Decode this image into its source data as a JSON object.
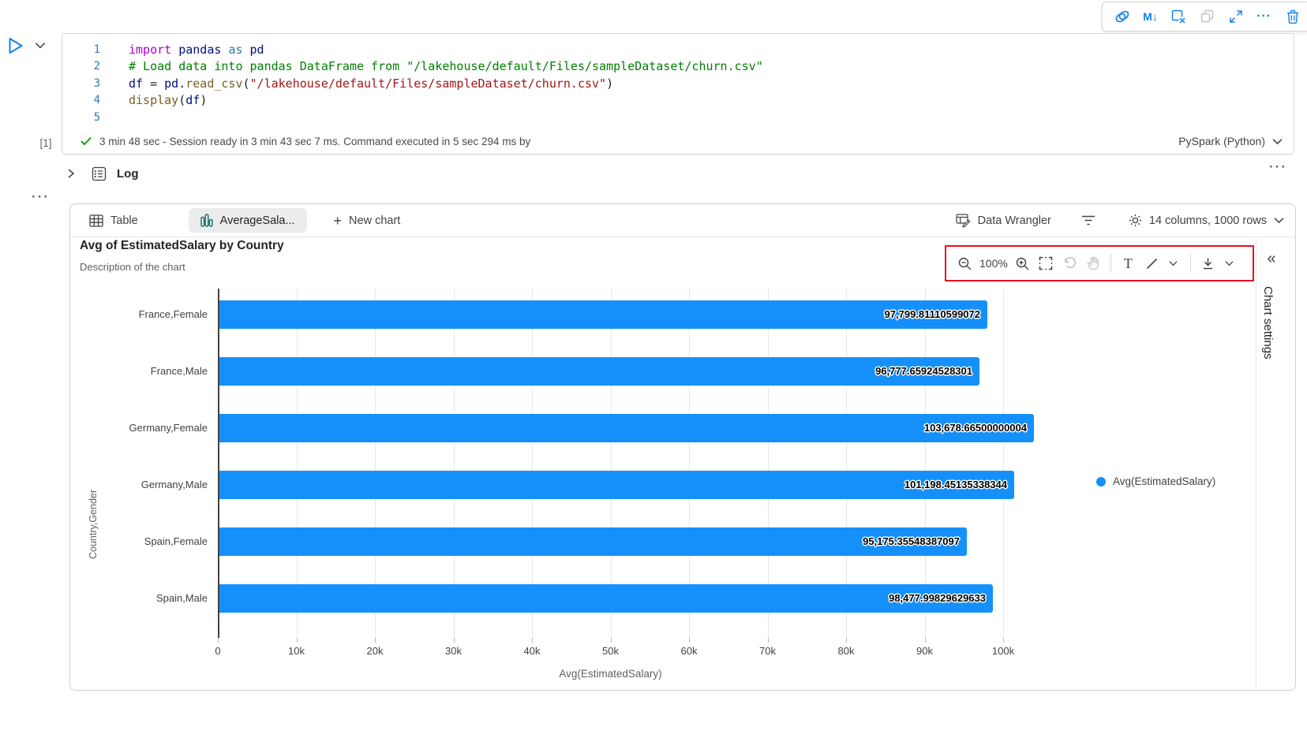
{
  "glyphs": {
    "ellipsis": "···",
    "collapse": "«",
    "plus": "+",
    "text_tool": "T",
    "markdown": "M↓"
  },
  "colors": {
    "accent_blue": "#1580ef",
    "bar_blue": "#1590fa",
    "teal_icon": "#0e6e62",
    "annotation_red": "#e81123",
    "success_green": "#13a10e",
    "selected_tab_bg": "#ececec"
  },
  "icons": {
    "cell_toolbar": [
      "copilot-icon",
      "markdown-convert-icon",
      "clear-output-icon",
      "copy-cell-icon",
      "expand-cell-icon",
      "more-icon",
      "delete-icon"
    ],
    "run_area": [
      "run-cell-icon",
      "run-options-chevron-icon"
    ],
    "log_row": [
      "chevron-right-icon",
      "log-icon",
      "more-icon"
    ],
    "tab_bar": [
      "table-icon",
      "bar-chart-icon",
      "plus-icon",
      "data-wrangler-icon",
      "filter-icon",
      "gear-icon",
      "chevron-down-icon"
    ],
    "chart_toolbar": [
      "zoom-out-icon",
      "zoom-in-icon",
      "select-region-icon",
      "undo-icon",
      "pan-icon",
      "text-tool-icon",
      "line-tool-icon",
      "download-icon",
      "chevron-down-icon"
    ],
    "chart_panel": [
      "collapse-double-chevron-icon"
    ],
    "status_row": [
      "success-check-icon",
      "chevron-down-icon"
    ]
  },
  "code": {
    "lines": [
      {
        "n": "1",
        "tokens": [
          {
            "t": "import",
            "c": "kw"
          },
          {
            "t": " ",
            "c": "pl"
          },
          {
            "t": "pandas",
            "c": "mod"
          },
          {
            "t": " ",
            "c": "pl"
          },
          {
            "t": "as",
            "c": "kw2"
          },
          {
            "t": " ",
            "c": "pl"
          },
          {
            "t": "pd",
            "c": "mod"
          }
        ]
      },
      {
        "n": "2",
        "tokens": [
          {
            "t": "# Load data into pandas DataFrame from \"/lakehouse/default/Files/sampleDataset/churn.csv\"",
            "c": "cm"
          }
        ]
      },
      {
        "n": "3",
        "tokens": [
          {
            "t": "df",
            "c": "mod"
          },
          {
            "t": " = ",
            "c": "pl"
          },
          {
            "t": "pd",
            "c": "mod"
          },
          {
            "t": ".",
            "c": "pl"
          },
          {
            "t": "read_csv",
            "c": "fn"
          },
          {
            "t": "(",
            "c": "pl"
          },
          {
            "t": "\"/lakehouse/default/Files/sampleDataset/churn.csv\"",
            "c": "st"
          },
          {
            "t": ")",
            "c": "pl"
          }
        ]
      },
      {
        "n": "4",
        "tokens": [
          {
            "t": "display",
            "c": "fn"
          },
          {
            "t": "(",
            "c": "pl"
          },
          {
            "t": "df",
            "c": "mod"
          },
          {
            "t": ")",
            "c": "pl"
          }
        ]
      },
      {
        "n": "5",
        "tokens": []
      }
    ]
  },
  "status": {
    "execution_count": "[1]",
    "message": "3 min 48 sec - Session ready in 3 min 43 sec 7 ms. Command executed in 5 sec 294 ms by",
    "kernel": "PySpark (Python)"
  },
  "log": {
    "label": "Log"
  },
  "output_tabs": {
    "table": "Table",
    "chart": "AverageSala...",
    "new_chart": "New chart",
    "data_wrangler": "Data Wrangler",
    "table_info": "14 columns, 1000 rows"
  },
  "chart_toolbar": {
    "zoom_level": "100%"
  },
  "chart_settings": {
    "label": "Chart settings"
  },
  "chart_data": {
    "type": "bar",
    "orientation": "horizontal",
    "title": "Avg of EstimatedSalary by Country",
    "subtitle": "Description of the chart",
    "categories": [
      "France,Female",
      "France,Male",
      "Germany,Female",
      "Germany,Male",
      "Spain,Female",
      "Spain,Male"
    ],
    "values": [
      97799.81110599072,
      96777.65924528301,
      103678.66500000004,
      101198.45135338344,
      95175.35548387097,
      98477.99829629633
    ],
    "value_labels": [
      "97,799.81110599072",
      "96,777.65924528301",
      "103,678.66500000004",
      "101,198.45135338344",
      "95,175.35548387097",
      "98,477.99829629633"
    ],
    "series": [
      {
        "name": "Avg(EstimatedSalary)",
        "color": "#1590fa"
      }
    ],
    "legend": [
      {
        "label": "Avg(EstimatedSalary)",
        "color": "#1590fa"
      }
    ],
    "xlabel": "Avg(EstimatedSalary)",
    "ylabel": "Country,Gender",
    "x_ticks": [
      "0",
      "10k",
      "20k",
      "30k",
      "40k",
      "50k",
      "60k",
      "70k",
      "80k",
      "90k",
      "100k"
    ],
    "xlim": [
      0,
      100000
    ],
    "bar_color": "#1590fa",
    "grid": true,
    "legend_position": "right"
  }
}
